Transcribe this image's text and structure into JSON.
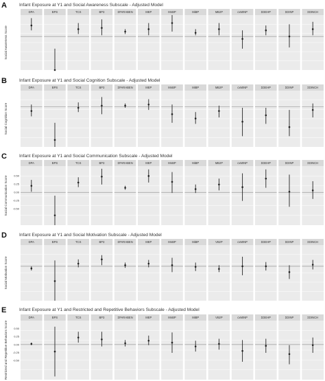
{
  "chart_data": [
    {
      "type": "scatter",
      "letter": "A",
      "title": "Infant Exposure at Y1 and Social Awareness Subscale - Adjusted Model",
      "ylabel": "Social Awareness Score",
      "ylim": [
        -0.55,
        0.35
      ],
      "yticks": [],
      "panels": [
        {
          "label": "DPA",
          "est": 0.18,
          "lo": 0.1,
          "hi": 0.3
        },
        {
          "label": "BPS",
          "est": -0.55,
          "lo": -0.9,
          "hi": -0.2
        },
        {
          "label": "TCS",
          "est": 0.12,
          "lo": 0.04,
          "hi": 0.22
        },
        {
          "label": "BP3",
          "est": 0.14,
          "lo": 0.02,
          "hi": 0.28
        },
        {
          "label": "ΣPARABEN",
          "est": 0.08,
          "lo": 0.04,
          "hi": 0.12
        },
        {
          "label": "MEP",
          "est": 0.12,
          "lo": 0.02,
          "hi": 0.22
        },
        {
          "label": "MnBP",
          "est": 0.22,
          "lo": 0.08,
          "hi": 0.38
        },
        {
          "label": "MiBP",
          "est": 0.06,
          "lo": 0.02,
          "hi": 0.12
        },
        {
          "label": "MBzP",
          "est": 0.12,
          "lo": 0.02,
          "hi": 0.22
        },
        {
          "label": "cxMINP",
          "est": -0.04,
          "lo": -0.2,
          "hi": 0.1
        },
        {
          "label": "ΣDEHP",
          "est": 0.1,
          "lo": 0.02,
          "hi": 0.18
        },
        {
          "label": "ΣDINP",
          "est": 0.0,
          "lo": -0.18,
          "hi": 0.2
        },
        {
          "label": "ΣDINCH",
          "est": 0.12,
          "lo": 0.02,
          "hi": 0.24
        }
      ]
    },
    {
      "type": "scatter",
      "letter": "B",
      "title": "Infant Exposure at Y1 and Social Cognition Subscale - Adjusted Model",
      "ylabel": "Social Cognition Score",
      "ylim": [
        -0.75,
        0.3
      ],
      "yticks": [],
      "panels": [
        {
          "label": "DPA",
          "est": -0.08,
          "lo": -0.18,
          "hi": 0.04
        },
        {
          "label": "BPS",
          "est": -0.62,
          "lo": -0.95,
          "hi": -0.3
        },
        {
          "label": "TCS",
          "est": -0.02,
          "lo": -0.1,
          "hi": 0.08
        },
        {
          "label": "BP3",
          "est": 0.02,
          "lo": -0.14,
          "hi": 0.18
        },
        {
          "label": "ΣPARABEN",
          "est": 0.02,
          "lo": -0.02,
          "hi": 0.06
        },
        {
          "label": "MEP",
          "est": 0.04,
          "lo": -0.06,
          "hi": 0.14
        },
        {
          "label": "MnBP",
          "est": -0.14,
          "lo": -0.3,
          "hi": 0.04
        },
        {
          "label": "MiBP",
          "est": -0.22,
          "lo": -0.32,
          "hi": -0.1
        },
        {
          "label": "MBzP",
          "est": -0.08,
          "lo": -0.2,
          "hi": 0.02
        },
        {
          "label": "cxMINP",
          "est": -0.28,
          "lo": -0.55,
          "hi": -0.02
        },
        {
          "label": "ΣDEHP",
          "est": -0.16,
          "lo": -0.32,
          "hi": -0.02
        },
        {
          "label": "ΣDINP",
          "est": -0.38,
          "lo": -0.55,
          "hi": -0.06
        },
        {
          "label": "ΣDINCH",
          "est": -0.06,
          "lo": -0.2,
          "hi": 0.06
        }
      ]
    },
    {
      "type": "scatter",
      "letter": "C",
      "title": "Infant Exposure at Y1 and Social Communication Subscale - Adjusted Model",
      "ylabel": "Social Communication Score",
      "ylim": [
        -1.0,
        0.8
      ],
      "yticks": [
        0.5,
        0.25,
        0.0,
        -0.25,
        -0.5
      ],
      "yticklabels": [
        "0.50",
        "0.25",
        "0.00",
        "-0.25",
        "-0.50"
      ],
      "panels": [
        {
          "label": "DPA",
          "est": 0.2,
          "lo": 0.02,
          "hi": 0.38
        },
        {
          "label": "BPS",
          "est": -0.7,
          "lo": -1.3,
          "hi": -0.1
        },
        {
          "label": "TCS",
          "est": 0.3,
          "lo": 0.16,
          "hi": 0.46
        },
        {
          "label": "BP3",
          "est": 0.48,
          "lo": 0.24,
          "hi": 0.72
        },
        {
          "label": "ΣPARABEN",
          "est": 0.14,
          "lo": 0.08,
          "hi": 0.2
        },
        {
          "label": "MEP",
          "est": 0.5,
          "lo": 0.3,
          "hi": 0.7
        },
        {
          "label": "MnBP",
          "est": 0.32,
          "lo": -0.02,
          "hi": 0.62
        },
        {
          "label": "MiBP",
          "est": 0.1,
          "lo": -0.02,
          "hi": 0.24
        },
        {
          "label": "MBzP",
          "est": 0.24,
          "lo": 0.06,
          "hi": 0.42
        },
        {
          "label": "cxMINP",
          "est": 0.16,
          "lo": -0.26,
          "hi": 0.58
        },
        {
          "label": "ΣDEHP",
          "est": 0.42,
          "lo": 0.14,
          "hi": 0.7
        },
        {
          "label": "ΣDINP",
          "est": 0.02,
          "lo": -0.44,
          "hi": 0.54
        },
        {
          "label": "ΣDINCH",
          "est": 0.06,
          "lo": -0.2,
          "hi": 0.34
        }
      ]
    },
    {
      "type": "scatter",
      "letter": "D",
      "title": "Infant Exposure at Y1 and Social Motivation Subscale - Adjusted Model",
      "ylabel": "Social Motivation Score",
      "ylim": [
        -1.3,
        0.8
      ],
      "yticks": [],
      "panels": [
        {
          "label": "DPA",
          "est": -0.08,
          "lo": -0.16,
          "hi": 0.0
        },
        {
          "label": "BPS",
          "est": -0.56,
          "lo": -1.3,
          "hi": 0.22
        },
        {
          "label": "TCS",
          "est": 0.1,
          "lo": -0.04,
          "hi": 0.26
        },
        {
          "label": "BP3",
          "est": 0.26,
          "lo": 0.04,
          "hi": 0.42
        },
        {
          "label": "ΣPARABEN",
          "est": 0.04,
          "lo": -0.06,
          "hi": 0.14
        },
        {
          "label": "MEP",
          "est": 0.1,
          "lo": -0.04,
          "hi": 0.24
        },
        {
          "label": "MnBP",
          "est": 0.04,
          "lo": -0.22,
          "hi": 0.32
        },
        {
          "label": "MiBP",
          "est": -0.02,
          "lo": -0.18,
          "hi": 0.14
        },
        {
          "label": "VBzP",
          "est": -0.1,
          "lo": -0.22,
          "hi": 0.04
        },
        {
          "label": "cxMINP",
          "est": 0.0,
          "lo": -0.34,
          "hi": 0.36
        },
        {
          "label": "ΣDEHP",
          "est": 0.0,
          "lo": -0.16,
          "hi": 0.16
        },
        {
          "label": "ΣDINP",
          "est": -0.22,
          "lo": -0.48,
          "hi": 0.04
        },
        {
          "label": "ΣDINCH",
          "est": 0.06,
          "lo": -0.12,
          "hi": 0.24
        }
      ]
    },
    {
      "type": "scatter",
      "letter": "E",
      "title": "Infant Exposure at Y1 and Restricted and Repetitive Behaviors Subscale - Adjusted Model",
      "ylabel": "Restricted and Repetitive Behaviors Score",
      "ylim": [
        -1.1,
        0.75
      ],
      "yticks": [
        0.5,
        0.25,
        0.0,
        -0.25,
        -0.5
      ],
      "yticklabels": [
        "0.50",
        "0.25",
        "0.00",
        "-0.25",
        "-0.50"
      ],
      "panels": [
        {
          "label": "DPA",
          "est": 0.02,
          "lo": -0.02,
          "hi": 0.06
        },
        {
          "label": "BPS",
          "est": -0.22,
          "lo": -1.0,
          "hi": 0.56
        },
        {
          "label": "TCS",
          "est": 0.22,
          "lo": 0.06,
          "hi": 0.4
        },
        {
          "label": "BP3",
          "est": 0.16,
          "lo": -0.06,
          "hi": 0.4
        },
        {
          "label": "ΣPARABEN",
          "est": 0.04,
          "lo": -0.06,
          "hi": 0.14
        },
        {
          "label": "MEP",
          "est": 0.12,
          "lo": -0.02,
          "hi": 0.28
        },
        {
          "label": "MnBP",
          "est": 0.06,
          "lo": -0.26,
          "hi": 0.38
        },
        {
          "label": "MiBP",
          "est": -0.06,
          "lo": -0.22,
          "hi": 0.12
        },
        {
          "label": "VBzP",
          "est": 0.02,
          "lo": -0.16,
          "hi": 0.18
        },
        {
          "label": "cxMINP",
          "est": -0.2,
          "lo": -0.54,
          "hi": 0.14
        },
        {
          "label": "ΣDEHP",
          "est": -0.04,
          "lo": -0.26,
          "hi": 0.18
        },
        {
          "label": "ΣDINP",
          "est": -0.3,
          "lo": -0.62,
          "hi": -0.02
        },
        {
          "label": "ΣDINCH",
          "est": -0.02,
          "lo": -0.26,
          "hi": 0.22
        }
      ]
    }
  ],
  "colors": {
    "panel_bg": "#ebebeb",
    "strip_bg": "#d9d9d9",
    "grid": "#ffffff",
    "ref_line": "#9a9a9a",
    "mark": "#222222",
    "text": "#333333"
  }
}
